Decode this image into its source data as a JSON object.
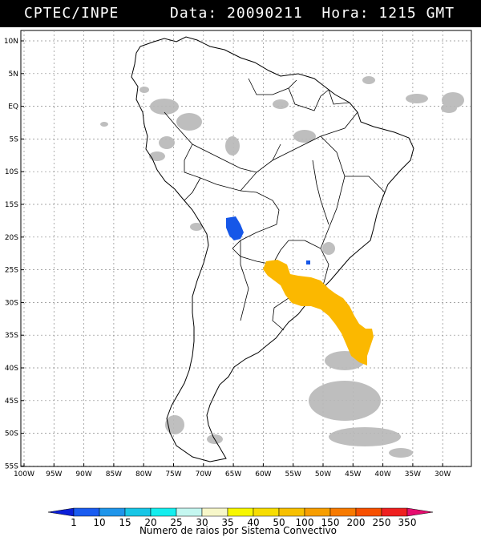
{
  "header": {
    "org": "CPTEC/INPE",
    "info": "Data: 20090211  Hora: 1215 GMT"
  },
  "axes": {
    "lat_labels": [
      "10N",
      "5N",
      "EQ",
      "5S",
      "10S",
      "15S",
      "20S",
      "25S",
      "30S",
      "35S",
      "40S",
      "45S",
      "50S",
      "55S"
    ],
    "lon_labels": [
      "100W",
      "95W",
      "90W",
      "85W",
      "80W",
      "75W",
      "70W",
      "65W",
      "60W",
      "55W",
      "50W",
      "45W",
      "40W",
      "35W",
      "30W"
    ]
  },
  "colorbar": {
    "title": "Numero de raios por Sistema Convectivo",
    "labels": [
      "1",
      "10",
      "15",
      "20",
      "25",
      "30",
      "35",
      "40",
      "50",
      "100",
      "150",
      "200",
      "250",
      "350"
    ],
    "colors": [
      "#0b1fd8",
      "#1a5cf0",
      "#1f95ea",
      "#18c6e6",
      "#14eeee",
      "#c4f7f0",
      "#f7f7c9",
      "#f7f700",
      "#f7dd00",
      "#f7c000",
      "#f79e00",
      "#f77a00",
      "#f75000",
      "#ef2020",
      "#e60d6f"
    ]
  },
  "map": {
    "land_color": "#ffffff",
    "cloud_color": "#b8b8b8",
    "storm_colors": {
      "bolivia": "#1657e8",
      "parana_small": "#1657e8",
      "argentina_south": "#fbb800"
    }
  }
}
